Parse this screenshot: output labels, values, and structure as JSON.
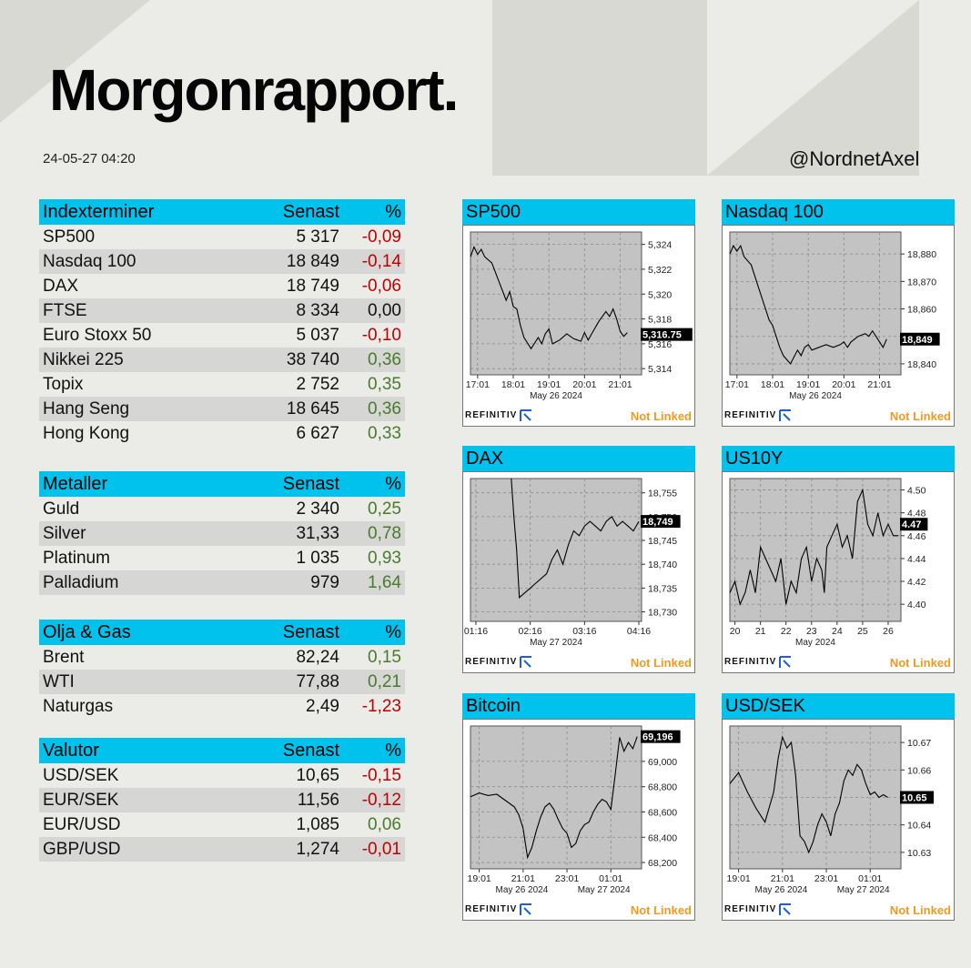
{
  "header": {
    "title": "Morgonrapport.",
    "timestamp": "24-05-27 04:20",
    "handle": "@NordnetAxel"
  },
  "colors": {
    "accent": "#00c2ed",
    "negative": "#c00000",
    "positive": "#4a7a2c",
    "not_linked": "#f09a1e"
  },
  "tables": [
    {
      "title": "Indexterminer",
      "col_last": "Senast",
      "col_pct": "%",
      "rows": [
        {
          "name": "SP500",
          "last": "5 317",
          "pct": "-0,09"
        },
        {
          "name": "Nasdaq 100",
          "last": "18 849",
          "pct": "-0,14"
        },
        {
          "name": "DAX",
          "last": "18 749",
          "pct": "-0,06"
        },
        {
          "name": "FTSE",
          "last": "8 334",
          "pct": "0,00"
        },
        {
          "name": "Euro Stoxx 50",
          "last": "5 037",
          "pct": "-0,10"
        },
        {
          "name": "Nikkei 225",
          "last": "38 740",
          "pct": "0,36"
        },
        {
          "name": "Topix",
          "last": "2 752",
          "pct": "0,35"
        },
        {
          "name": "Hang Seng",
          "last": "18 645",
          "pct": "0,36"
        },
        {
          "name": "Hong Kong",
          "last": "6 627",
          "pct": "0,33"
        }
      ]
    },
    {
      "title": "Metaller",
      "col_last": "Senast",
      "col_pct": "%",
      "rows": [
        {
          "name": "Guld",
          "last": "2 340",
          "pct": "0,25"
        },
        {
          "name": "Silver",
          "last": "31,33",
          "pct": "0,78"
        },
        {
          "name": "Platinum",
          "last": "1 035",
          "pct": "0,93"
        },
        {
          "name": "Palladium",
          "last": "979",
          "pct": "1,64"
        }
      ]
    },
    {
      "title": "Olja & Gas",
      "col_last": "Senast",
      "col_pct": "%",
      "rows": [
        {
          "name": "Brent",
          "last": "82,24",
          "pct": "0,15"
        },
        {
          "name": "WTI",
          "last": "77,88",
          "pct": "0,21"
        },
        {
          "name": "Naturgas",
          "last": "2,49",
          "pct": "-1,23"
        }
      ]
    },
    {
      "title": "Valutor",
      "col_last": "Senast",
      "col_pct": "%",
      "rows": [
        {
          "name": "USD/SEK",
          "last": "10,65",
          "pct": "-0,15"
        },
        {
          "name": "EUR/SEK",
          "last": "11,56",
          "pct": "-0,12"
        },
        {
          "name": "EUR/USD",
          "last": "1,085",
          "pct": "0,06"
        },
        {
          "name": "GBP/USD",
          "last": "1,274",
          "pct": "-0,01"
        }
      ]
    }
  ],
  "footer": {
    "brand": "REFINITIV",
    "status": "Not Linked"
  },
  "chart_data": [
    {
      "type": "line",
      "title": "SP500",
      "ylim": [
        5313.5,
        5325
      ],
      "yticks": [
        "5,324",
        "5,322",
        "5,320",
        "5,318",
        "5,316",
        "5,314"
      ],
      "ytick_values": [
        5324,
        5322,
        5320,
        5318,
        5316,
        5314
      ],
      "xticks": [
        "17:01",
        "18:01",
        "19:01",
        "20:01",
        "21:01"
      ],
      "xtick_values": [
        1,
        2,
        3,
        4,
        5
      ],
      "xlim": [
        0.8,
        5.6
      ],
      "date_labels": [
        "May 26 2024"
      ],
      "last_label": "5,316.75",
      "last_value": 5316.75,
      "x": [
        0.8,
        0.9,
        1.0,
        1.1,
        1.2,
        1.4,
        1.6,
        1.8,
        1.9,
        2.0,
        2.1,
        2.2,
        2.3,
        2.5,
        2.7,
        2.8,
        2.9,
        3.0,
        3.1,
        3.3,
        3.5,
        3.7,
        3.9,
        4.0,
        4.1,
        4.2,
        4.4,
        4.6,
        4.7,
        4.8,
        4.9,
        5.0,
        5.1,
        5.2
      ],
      "y": [
        5323,
        5323.8,
        5323.2,
        5323.6,
        5323,
        5322.5,
        5321,
        5319.5,
        5320.2,
        5319,
        5318.8,
        5317.5,
        5316.5,
        5315.6,
        5316.5,
        5316,
        5316.8,
        5317.2,
        5316,
        5316.3,
        5316.8,
        5316.4,
        5316.2,
        5316.9,
        5316.3,
        5316.8,
        5317.8,
        5318.6,
        5318.2,
        5318.8,
        5318,
        5317,
        5316.6,
        5316.9
      ]
    },
    {
      "type": "line",
      "title": "Nasdaq 100",
      "ylim": [
        18836,
        18888
      ],
      "yticks": [
        "18,880",
        "18,870",
        "18,860",
        "18,850",
        "18,840"
      ],
      "ytick_values": [
        18880,
        18870,
        18860,
        18850,
        18840
      ],
      "xticks": [
        "17:01",
        "18:01",
        "19:01",
        "20:01",
        "21:01"
      ],
      "xtick_values": [
        1,
        2,
        3,
        4,
        5
      ],
      "xlim": [
        0.8,
        5.6
      ],
      "date_labels": [
        "May 26 2024"
      ],
      "last_label": "18,849",
      "last_value": 18849,
      "x": [
        0.8,
        0.9,
        1.0,
        1.1,
        1.2,
        1.4,
        1.6,
        1.8,
        1.9,
        2.0,
        2.1,
        2.2,
        2.3,
        2.5,
        2.7,
        2.8,
        2.9,
        3.0,
        3.1,
        3.3,
        3.5,
        3.7,
        3.9,
        4.0,
        4.1,
        4.2,
        4.4,
        4.6,
        4.7,
        4.8,
        4.9,
        5.0,
        5.1,
        5.2
      ],
      "y": [
        18880,
        18883,
        18881,
        18883,
        18879,
        18876,
        18868,
        18860,
        18856,
        18854,
        18850,
        18846,
        18843,
        18840,
        18845,
        18843,
        18846,
        18847,
        18845,
        18846,
        18847,
        18846,
        18847,
        18848,
        18846,
        18848,
        18850,
        18851,
        18850,
        18852,
        18850,
        18848,
        18846,
        18849
      ]
    },
    {
      "type": "line",
      "title": "DAX",
      "ylim": [
        18728,
        18758
      ],
      "yticks": [
        "18,755",
        "18,750",
        "18,745",
        "18,740",
        "18,735",
        "18,730"
      ],
      "ytick_values": [
        18755,
        18750,
        18745,
        18740,
        18735,
        18730
      ],
      "xticks": [
        "01:16",
        "02:16",
        "03:16",
        "04:16"
      ],
      "xtick_values": [
        1,
        2,
        3,
        4
      ],
      "xlim": [
        0.9,
        4.05
      ],
      "date_labels": [
        "May 27 2024"
      ],
      "last_label": "18,749",
      "last_value": 18749,
      "x": [
        1.65,
        1.7,
        1.75,
        1.8,
        1.9,
        2.0,
        2.1,
        2.2,
        2.3,
        2.4,
        2.5,
        2.6,
        2.7,
        2.8,
        2.9,
        3.0,
        3.1,
        3.2,
        3.3,
        3.4,
        3.5,
        3.6,
        3.7,
        3.8,
        3.9,
        4.0
      ],
      "y": [
        18758,
        18750,
        18743,
        18733,
        18734,
        18735,
        18736,
        18737,
        18738,
        18741,
        18743,
        18740,
        18744,
        18747,
        18746,
        18748,
        18749,
        18748,
        18747,
        18749,
        18750,
        18748,
        18749,
        18748,
        18747,
        18749
      ]
    },
    {
      "type": "line",
      "title": "US10Y",
      "ylim": [
        4.385,
        4.51
      ],
      "yticks": [
        "4.50",
        "4.48",
        "4.46",
        "4.44",
        "4.42",
        "4.40"
      ],
      "ytick_values": [
        4.5,
        4.48,
        4.46,
        4.44,
        4.42,
        4.4
      ],
      "xticks": [
        "20",
        "21",
        "22",
        "23",
        "24",
        "25",
        "26"
      ],
      "xtick_values": [
        20,
        21,
        22,
        23,
        24,
        25,
        26
      ],
      "xlim": [
        19.8,
        26.5
      ],
      "date_labels": [
        "May 2024"
      ],
      "last_label": "4.47",
      "last_value": 4.47,
      "x": [
        19.8,
        20.0,
        20.2,
        20.4,
        20.6,
        20.8,
        21.0,
        21.2,
        21.4,
        21.6,
        21.8,
        22.0,
        22.2,
        22.4,
        22.6,
        22.8,
        23.0,
        23.2,
        23.4,
        23.5,
        23.6,
        23.8,
        24.0,
        24.2,
        24.4,
        24.6,
        24.8,
        25.0,
        25.2,
        25.4,
        25.6,
        25.8,
        26.0,
        26.2,
        26.4
      ],
      "y": [
        4.41,
        4.42,
        4.4,
        4.41,
        4.43,
        4.41,
        4.45,
        4.44,
        4.43,
        4.42,
        4.44,
        4.4,
        4.42,
        4.41,
        4.44,
        4.45,
        4.42,
        4.44,
        4.43,
        4.41,
        4.45,
        4.46,
        4.47,
        4.45,
        4.46,
        4.44,
        4.49,
        4.5,
        4.47,
        4.46,
        4.48,
        4.46,
        4.47,
        4.46,
        4.46
      ]
    },
    {
      "type": "line",
      "title": "Bitcoin",
      "ylim": [
        68150,
        69280
      ],
      "yticks": [
        "69,000",
        "68,800",
        "68,600",
        "68,400",
        "68,200"
      ],
      "ytick_values": [
        69000,
        68800,
        68600,
        68400,
        68200
      ],
      "xticks": [
        "19:01",
        "21:01",
        "23:01",
        "01:01"
      ],
      "xtick_values": [
        1,
        2,
        3,
        4
      ],
      "xlim": [
        0.8,
        4.7
      ],
      "date_labels": [
        "May 26 2024",
        "May 27 2024"
      ],
      "last_label": "69,196",
      "last_value": 69196,
      "x": [
        0.8,
        1.0,
        1.2,
        1.4,
        1.6,
        1.8,
        1.9,
        2.0,
        2.1,
        2.2,
        2.3,
        2.4,
        2.5,
        2.6,
        2.7,
        2.8,
        2.9,
        3.0,
        3.1,
        3.2,
        3.3,
        3.4,
        3.5,
        3.6,
        3.7,
        3.8,
        3.9,
        4.0,
        4.1,
        4.2,
        4.3,
        4.4,
        4.5,
        4.6
      ],
      "y": [
        68720,
        68750,
        68730,
        68740,
        68690,
        68640,
        68580,
        68470,
        68240,
        68320,
        68450,
        68560,
        68640,
        68670,
        68620,
        68540,
        68470,
        68430,
        68320,
        68350,
        68450,
        68500,
        68520,
        68600,
        68660,
        68700,
        68680,
        68620,
        68900,
        69190,
        69080,
        69150,
        69100,
        69196
      ]
    },
    {
      "type": "line",
      "title": "USD/SEK",
      "ylim": [
        10.624,
        10.676
      ],
      "yticks": [
        "10.67",
        "10.66",
        "10.65",
        "10.64",
        "10.63"
      ],
      "ytick_values": [
        10.67,
        10.66,
        10.65,
        10.64,
        10.63
      ],
      "xticks": [
        "19:01",
        "21:01",
        "23:01",
        "01:01"
      ],
      "xtick_values": [
        1,
        2,
        3,
        4
      ],
      "xlim": [
        0.8,
        4.7
      ],
      "date_labels": [
        "May 26 2024",
        "May 27 2024"
      ],
      "last_label": "10.65",
      "last_value": 10.65,
      "x": [
        0.8,
        1.0,
        1.2,
        1.4,
        1.6,
        1.8,
        1.9,
        2.0,
        2.1,
        2.2,
        2.3,
        2.4,
        2.5,
        2.6,
        2.7,
        2.8,
        2.9,
        3.0,
        3.1,
        3.2,
        3.3,
        3.4,
        3.5,
        3.6,
        3.7,
        3.8,
        3.9,
        4.0,
        4.1,
        4.2,
        4.3,
        4.4
      ],
      "y": [
        10.655,
        10.659,
        10.652,
        10.646,
        10.641,
        10.652,
        10.664,
        10.672,
        10.668,
        10.67,
        10.658,
        10.636,
        10.634,
        10.63,
        10.634,
        10.64,
        10.644,
        10.641,
        10.636,
        10.644,
        10.648,
        10.656,
        10.66,
        10.658,
        10.662,
        10.66,
        10.655,
        10.651,
        10.652,
        10.65,
        10.651,
        10.65
      ]
    }
  ]
}
